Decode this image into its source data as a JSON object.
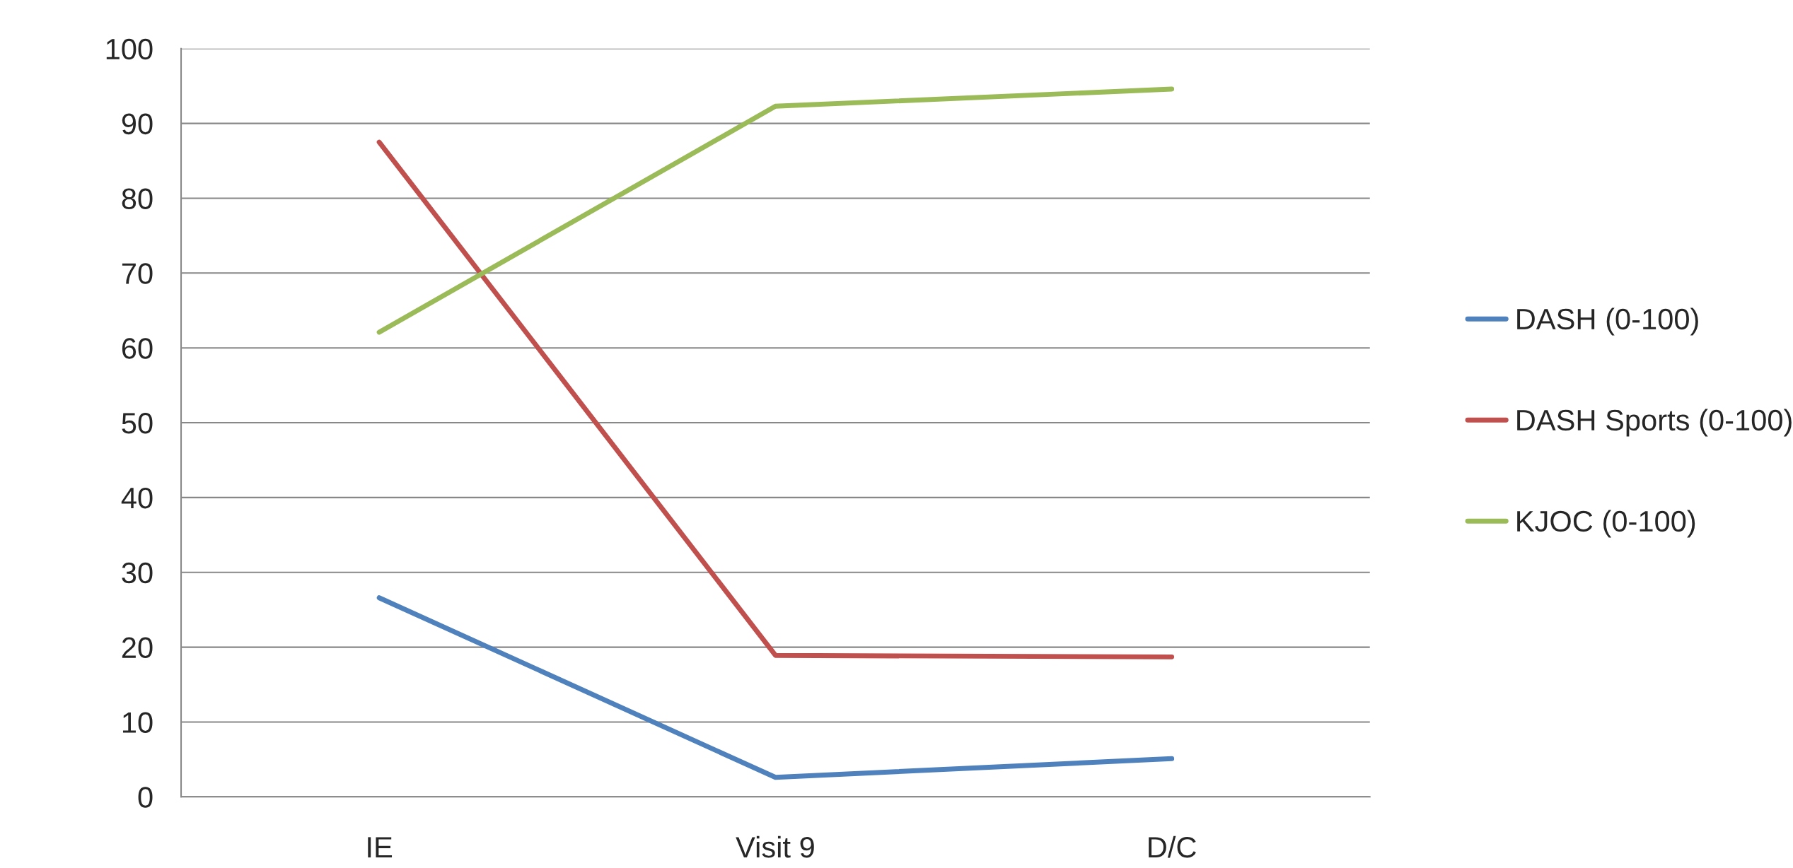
{
  "chart_data": {
    "type": "line",
    "categories": [
      "IE",
      "Visit 9",
      "D/C"
    ],
    "series": [
      {
        "name": "DASH (0-100)",
        "color": "#4f81bd",
        "values": [
          26.6,
          2.6,
          5.1
        ]
      },
      {
        "name": "DASH Sports (0-100)",
        "color": "#c0504d",
        "values": [
          87.5,
          18.9,
          18.7
        ]
      },
      {
        "name": "KJOC (0-100)",
        "color": "#9bbb59",
        "values": [
          62.1,
          92.3,
          94.6
        ]
      }
    ],
    "ylim": [
      0,
      100
    ],
    "yticks": [
      0,
      10,
      20,
      30,
      40,
      50,
      60,
      70,
      80,
      90,
      100
    ],
    "grid": "y",
    "legend": "right",
    "marker": "none",
    "line_style": "solid"
  }
}
